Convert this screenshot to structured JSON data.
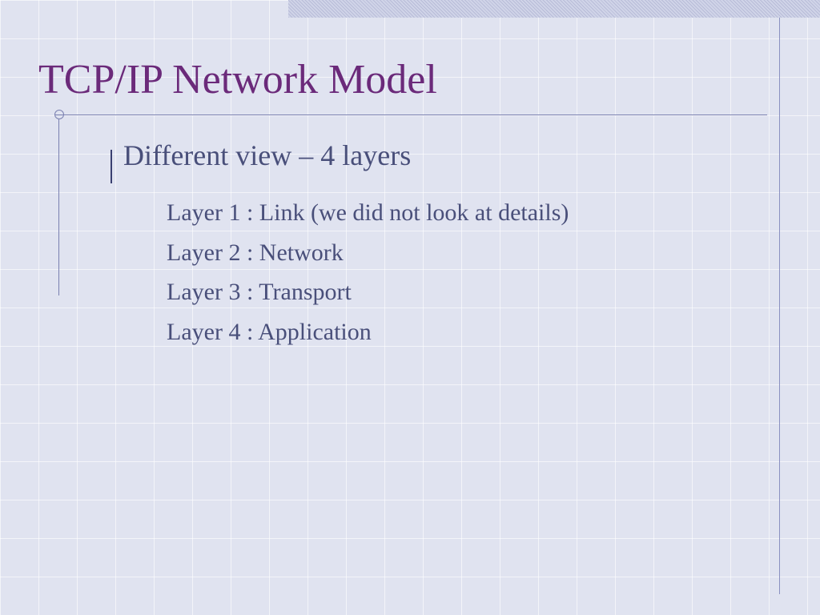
{
  "slide": {
    "title": "TCP/IP Network Model",
    "title_color": "#6b2a7a",
    "title_fontsize": 52,
    "body_color": "#494f7a",
    "background_color": "#e0e3f0",
    "grid_line_color": "#ffffff",
    "accent_bar_color": "#b8bcd8",
    "rule_color": "#7a80b0",
    "level1": {
      "text": "Different view – 4 layers",
      "fontsize": 36,
      "bullet_style": "diamond",
      "bullet_color": "#4a5090"
    },
    "level2": {
      "fontsize": 30,
      "bullet_style": "square",
      "bullet_color": "#5a6090",
      "items": [
        "Layer 1 : Link (we did not look at details)",
        "Layer 2 : Network",
        "Layer 3 : Transport",
        "Layer 4 : Application"
      ]
    }
  }
}
